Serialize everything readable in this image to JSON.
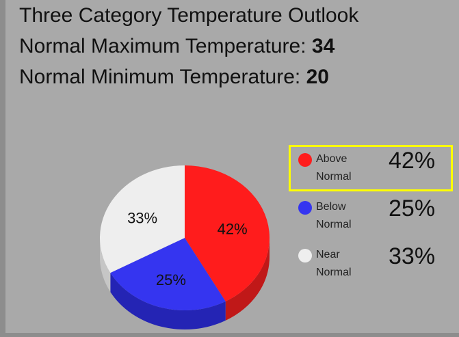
{
  "header": {
    "title": "Three Category Temperature Outlook",
    "lines": [
      {
        "label": "Normal Maximum Temperature:",
        "value": 34
      },
      {
        "label": "Normal Minimum Temperature:",
        "value": 20
      }
    ]
  },
  "chart_data": {
    "type": "pie",
    "categories": [
      "Above Normal",
      "Below Normal",
      "Near Normal"
    ],
    "values": [
      42,
      25,
      33
    ],
    "value_labels": [
      "42%",
      "25%",
      "33%"
    ],
    "colors": [
      "#ff1c1c",
      "#3535f0",
      "#eeeeee"
    ],
    "side_colors": [
      "#c01818",
      "#2424b4",
      "#c6c6c6"
    ]
  }
}
